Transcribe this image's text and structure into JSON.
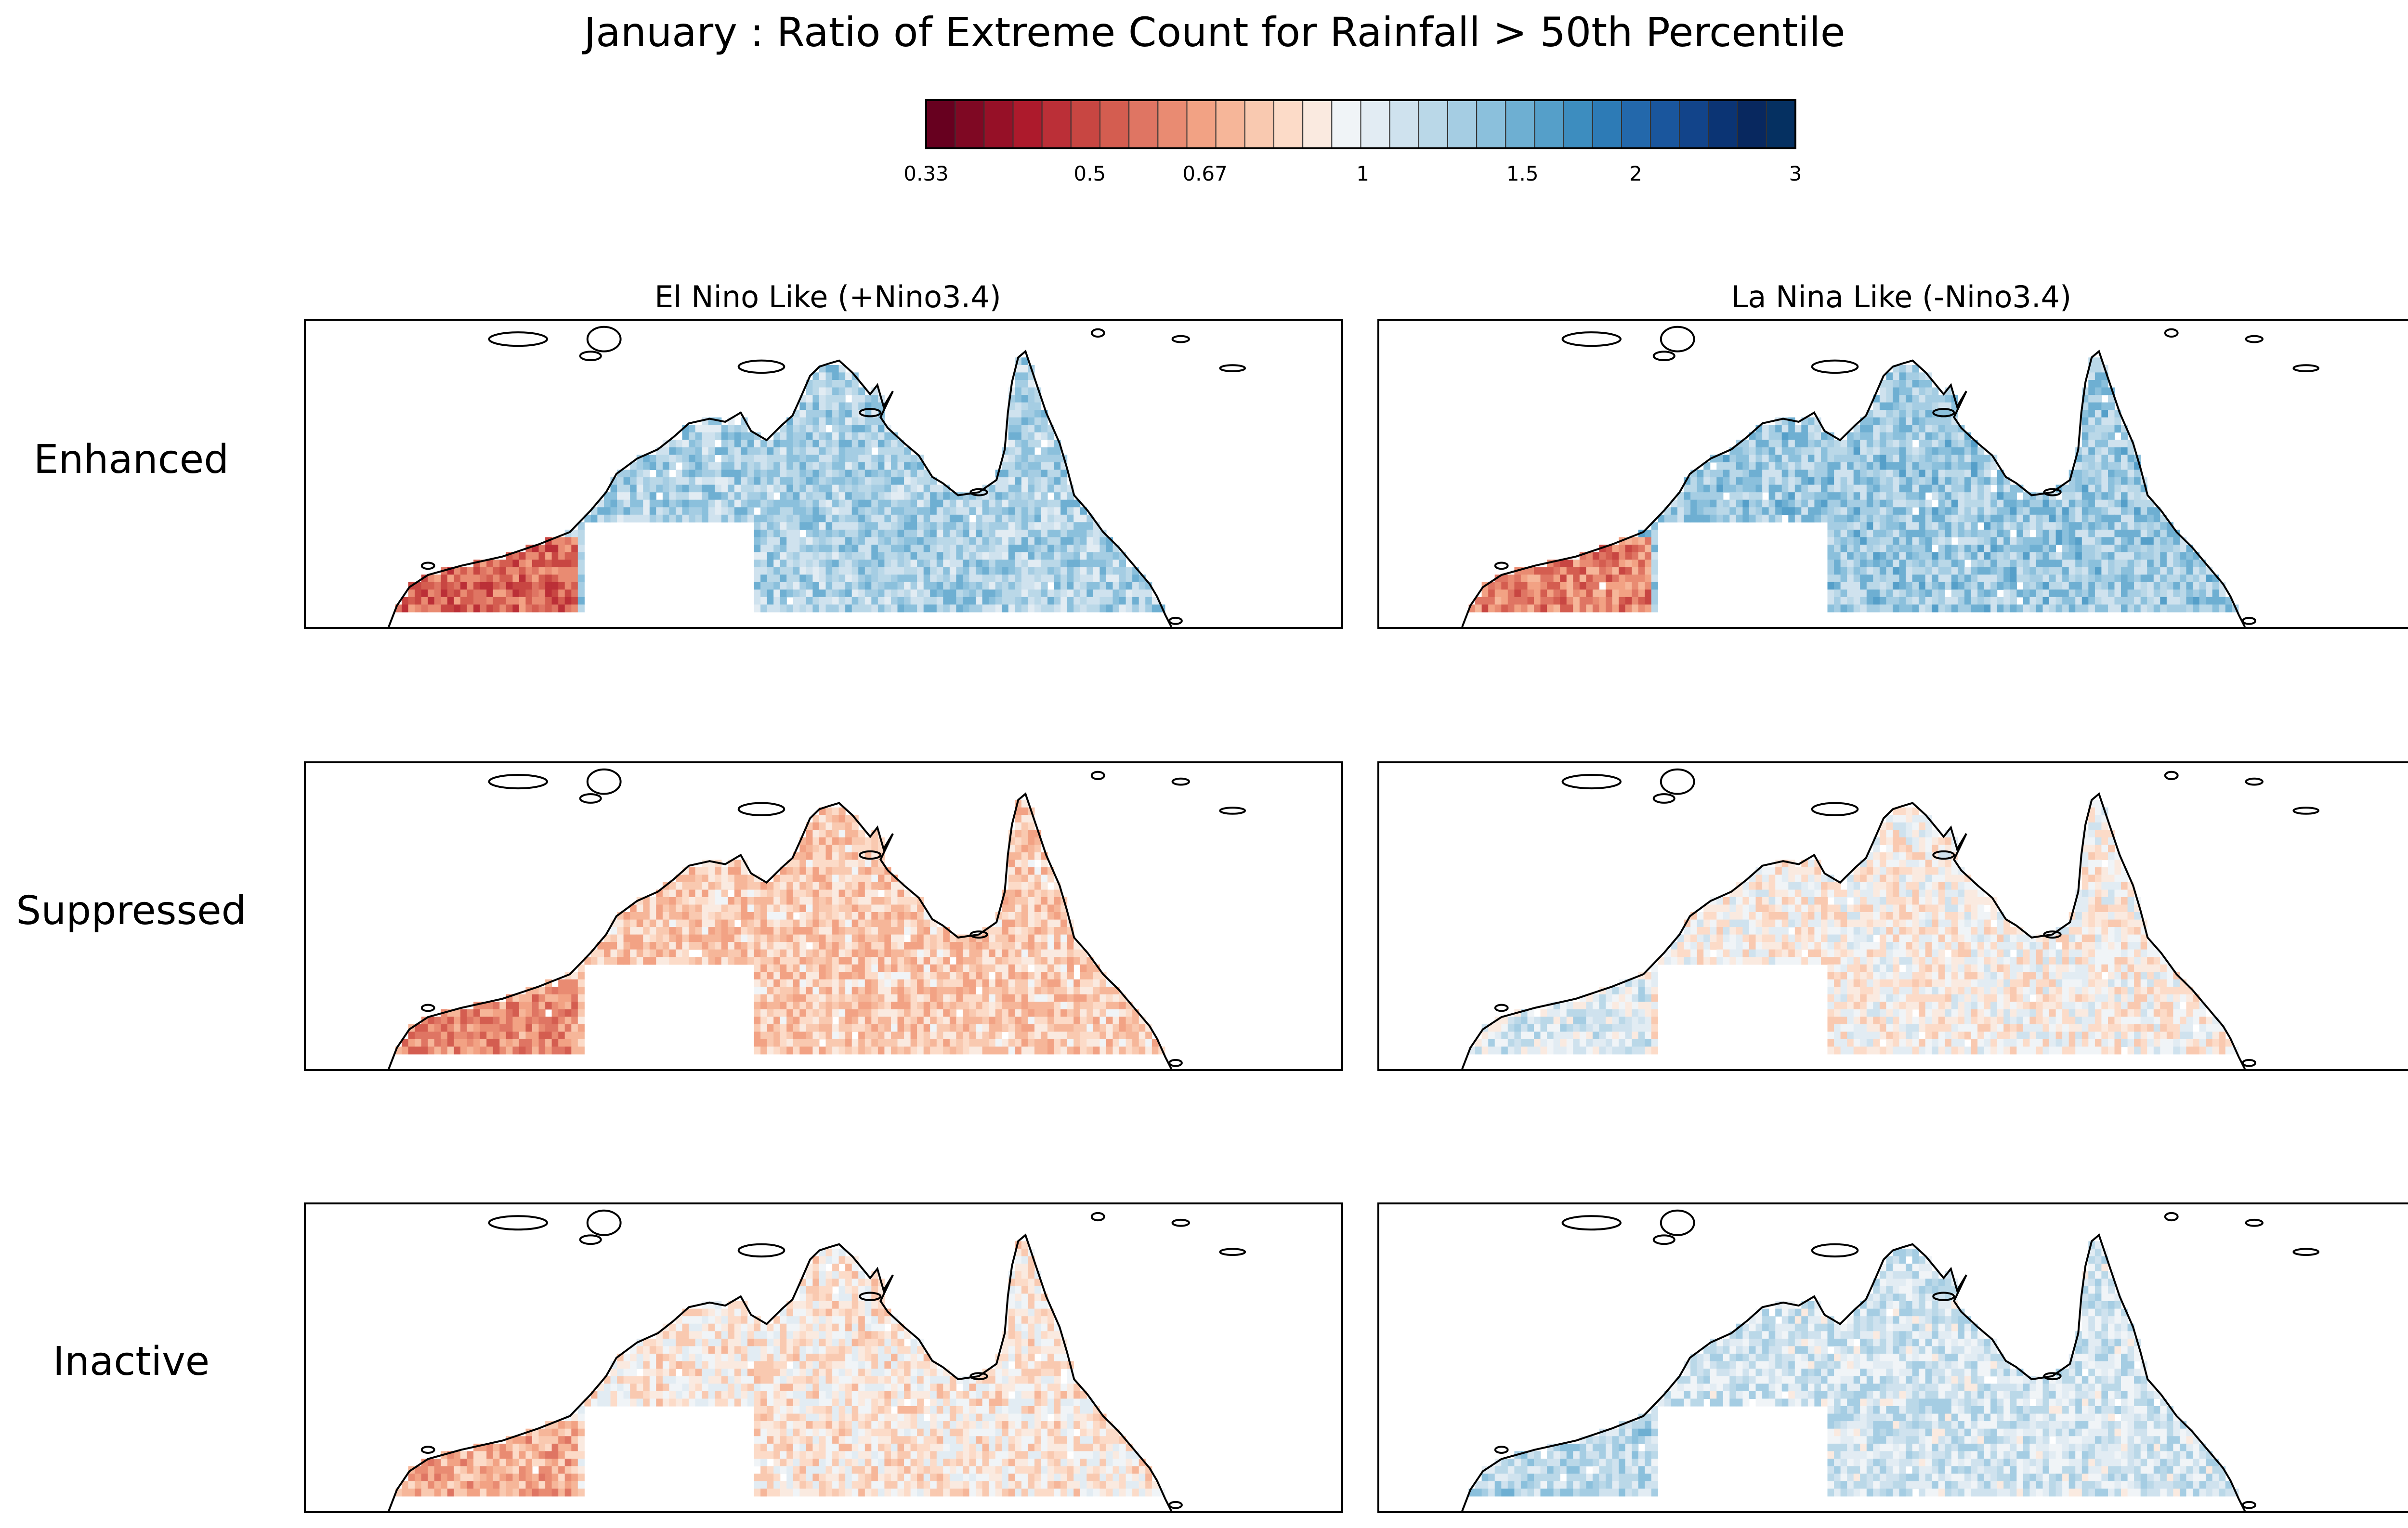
{
  "title": "January : Ratio of Extreme Count for Rainfall > 50th Percentile",
  "colorbar": {
    "ticks": [
      "0.33",
      "0.5",
      "0.67",
      "1",
      "1.5",
      "2",
      "3"
    ],
    "colors": [
      "#67001f",
      "#7f0823",
      "#961027",
      "#ad1a2c",
      "#bb2f37",
      "#c84642",
      "#d45d50",
      "#df7563",
      "#e98b72",
      "#f2a284",
      "#f6b699",
      "#f9c9b0",
      "#fcdbc8",
      "#faeae0",
      "#f0f4f7",
      "#e2ecf3",
      "#cfe2ee",
      "#bad8e8",
      "#a5cde3",
      "#8bc0dc",
      "#6eafd2",
      "#559fc9",
      "#3d8dbf",
      "#2d7bb6",
      "#2368ab",
      "#1a569d",
      "#12448a",
      "#0b3474",
      "#08285f",
      "#053061"
    ]
  },
  "columns": [
    "El Nino Like (+Nino3.4)",
    "La Nina Like (-Nino3.4)"
  ],
  "rows": [
    "Enhanced",
    "Suppressed",
    "Inactive"
  ],
  "chart_data": {
    "type": "heatmap",
    "title": "January : Ratio of Extreme Count for Rainfall > 50th Percentile",
    "colorbar_ticks": [
      0.33,
      0.5,
      0.67,
      1,
      1.5,
      2,
      3
    ],
    "colorbar_scale": "log",
    "panels": [
      {
        "row": "Enhanced",
        "column": "El Nino Like (+Nino3.4)",
        "bias": 1.25,
        "southwest_coast": 0.55
      },
      {
        "row": "Enhanced",
        "column": "La Nina Like (-Nino3.4)",
        "bias": 1.3,
        "southwest_coast": 0.6
      },
      {
        "row": "Suppressed",
        "column": "El Nino Like (+Nino3.4)",
        "bias": 0.78,
        "southwest_coast": 0.62
      },
      {
        "row": "Suppressed",
        "column": "La Nina Like (-Nino3.4)",
        "bias": 0.92,
        "southwest_coast": 1.05
      },
      {
        "row": "Inactive",
        "column": "El Nino Like (+Nino3.4)",
        "bias": 0.88,
        "southwest_coast": 0.7
      },
      {
        "row": "Inactive",
        "column": "La Nina Like (-Nino3.4)",
        "bias": 1.1,
        "southwest_coast": 1.2
      }
    ]
  }
}
